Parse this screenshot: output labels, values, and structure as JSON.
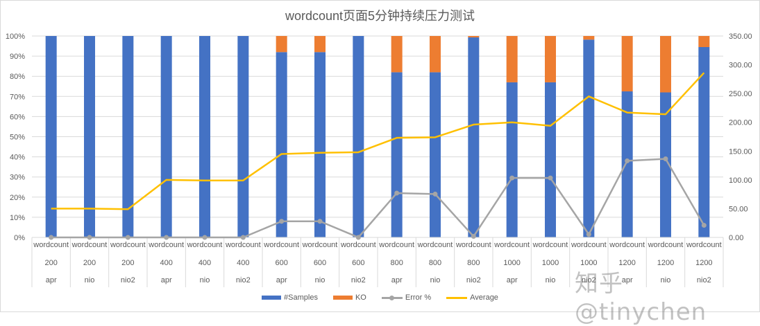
{
  "title": "wordcount页面5分钟持续压力测试",
  "watermark": "知乎 @tinychen",
  "colors": {
    "samples": "#4472c4",
    "ko": "#ed7d31",
    "error": "#a5a5a5",
    "average": "#ffc000",
    "grid": "#d9d9d9"
  },
  "legend": [
    {
      "label": "#Samples",
      "kind": "bar",
      "color": "#4472c4"
    },
    {
      "label": "KO",
      "kind": "bar",
      "color": "#ed7d31"
    },
    {
      "label": "Error %",
      "kind": "line-marker",
      "color": "#a5a5a5"
    },
    {
      "label": "Average",
      "kind": "line",
      "color": "#ffc000"
    }
  ],
  "chart_data": {
    "type": "bar",
    "subtype": "100% stacked column + line combo (secondary axis)",
    "title": "wordcount页面5分钟持续压力测试",
    "xlabel": "",
    "ylabel": "",
    "ylim": [
      0,
      100
    ],
    "y2lim": [
      0,
      350
    ],
    "y_ticks": [
      "0%",
      "10%",
      "20%",
      "30%",
      "40%",
      "50%",
      "60%",
      "70%",
      "80%",
      "90%",
      "100%"
    ],
    "y2_ticks": [
      "0.00",
      "50.00",
      "100.00",
      "150.00",
      "200.00",
      "250.00",
      "300.00",
      "350.00"
    ],
    "grid": true,
    "legend_position": "bottom",
    "categories": [
      [
        "wordcount",
        "200",
        "apr"
      ],
      [
        "wordcount",
        "200",
        "nio"
      ],
      [
        "wordcount",
        "200",
        "nio2"
      ],
      [
        "wordcount",
        "400",
        "apr"
      ],
      [
        "wordcount",
        "400",
        "nio"
      ],
      [
        "wordcount",
        "400",
        "nio2"
      ],
      [
        "wordcount",
        "600",
        "apr"
      ],
      [
        "wordcount",
        "600",
        "nio"
      ],
      [
        "wordcount",
        "600",
        "nio2"
      ],
      [
        "wordcount",
        "800",
        "apr"
      ],
      [
        "wordcount",
        "800",
        "nio"
      ],
      [
        "wordcount",
        "800",
        "nio2"
      ],
      [
        "wordcount",
        "1000",
        "apr"
      ],
      [
        "wordcount",
        "1000",
        "nio"
      ],
      [
        "wordcount",
        "1000",
        "nio2"
      ],
      [
        "wordcount",
        "1200",
        "apr"
      ],
      [
        "wordcount",
        "1200",
        "nio"
      ],
      [
        "wordcount",
        "1200",
        "nio2"
      ]
    ],
    "series": [
      {
        "name": "#Samples",
        "type": "stacked-bar-percent",
        "axis": "left",
        "values": [
          100,
          100,
          100,
          100,
          100,
          100,
          92,
          92,
          100,
          82,
          82,
          99.3,
          77,
          77,
          98.2,
          72.5,
          72,
          94.5
        ]
      },
      {
        "name": "KO",
        "type": "stacked-bar-percent",
        "axis": "left",
        "values": [
          0,
          0,
          0,
          0,
          0,
          0,
          8,
          8,
          0,
          18,
          18,
          0.7,
          23,
          23,
          1.8,
          27.5,
          28,
          5.5
        ]
      },
      {
        "name": "Error %",
        "type": "line",
        "axis": "left",
        "marker": "circle",
        "values": [
          0,
          0,
          0,
          0,
          0,
          0,
          8,
          8,
          0,
          22,
          21.5,
          0.5,
          29.5,
          29.5,
          1.5,
          38,
          39,
          6
        ]
      },
      {
        "name": "Average",
        "type": "line",
        "axis": "right",
        "values": [
          50,
          50,
          49,
          100,
          99,
          99,
          145,
          147,
          148,
          173,
          174,
          196,
          200,
          194,
          245,
          217,
          214,
          286
        ]
      }
    ]
  }
}
